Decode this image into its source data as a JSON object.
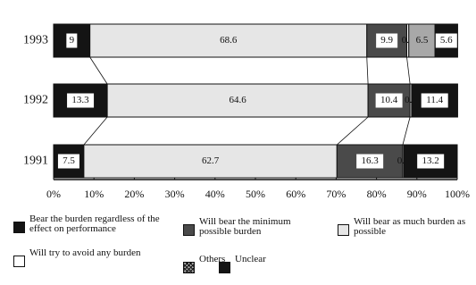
{
  "chart_data": {
    "type": "bar",
    "orientation": "horizontal",
    "stacked": true,
    "categories": [
      "1993",
      "1992",
      "1991"
    ],
    "series": [
      {
        "name": "Bear the burden regardless of the effect on performance",
        "color": "#141414",
        "values": [
          9,
          13.3,
          7.5
        ]
      },
      {
        "name": "Will bear as much burden as possible",
        "color": "#e6e6e6",
        "values": [
          68.6,
          64.6,
          62.7
        ]
      },
      {
        "name": "Will bear the minimum possible burden",
        "color": "#4a4a4a",
        "values": [
          9.9,
          10.4,
          16.3
        ]
      },
      {
        "name": "Will try to avoid any burden",
        "color": "#ffffff",
        "values": [
          0.5,
          0.4,
          0.3
        ]
      },
      {
        "name": "Others",
        "color": "#a8a8a8",
        "values": [
          6.5,
          null,
          null
        ]
      },
      {
        "name": "Unclear",
        "color": "#141414",
        "values": [
          5.6,
          11.4,
          13.2
        ]
      }
    ],
    "legend_order": [
      0,
      2,
      1,
      3,
      4,
      5
    ],
    "xlim": [
      0,
      100
    ],
    "xticks": [
      {
        "value": 0,
        "label": "0%"
      },
      {
        "value": 10,
        "label": "10%"
      },
      {
        "value": 20,
        "label": "20%"
      },
      {
        "value": 30,
        "label": "30%"
      },
      {
        "value": 40,
        "label": "40%"
      },
      {
        "value": 50,
        "label": "50%"
      },
      {
        "value": 60,
        "label": "60%"
      },
      {
        "value": 70,
        "label": "70%"
      },
      {
        "value": 80,
        "label": "80%"
      },
      {
        "value": 90,
        "label": "90%"
      },
      {
        "value": 100,
        "label": "100%"
      }
    ]
  }
}
